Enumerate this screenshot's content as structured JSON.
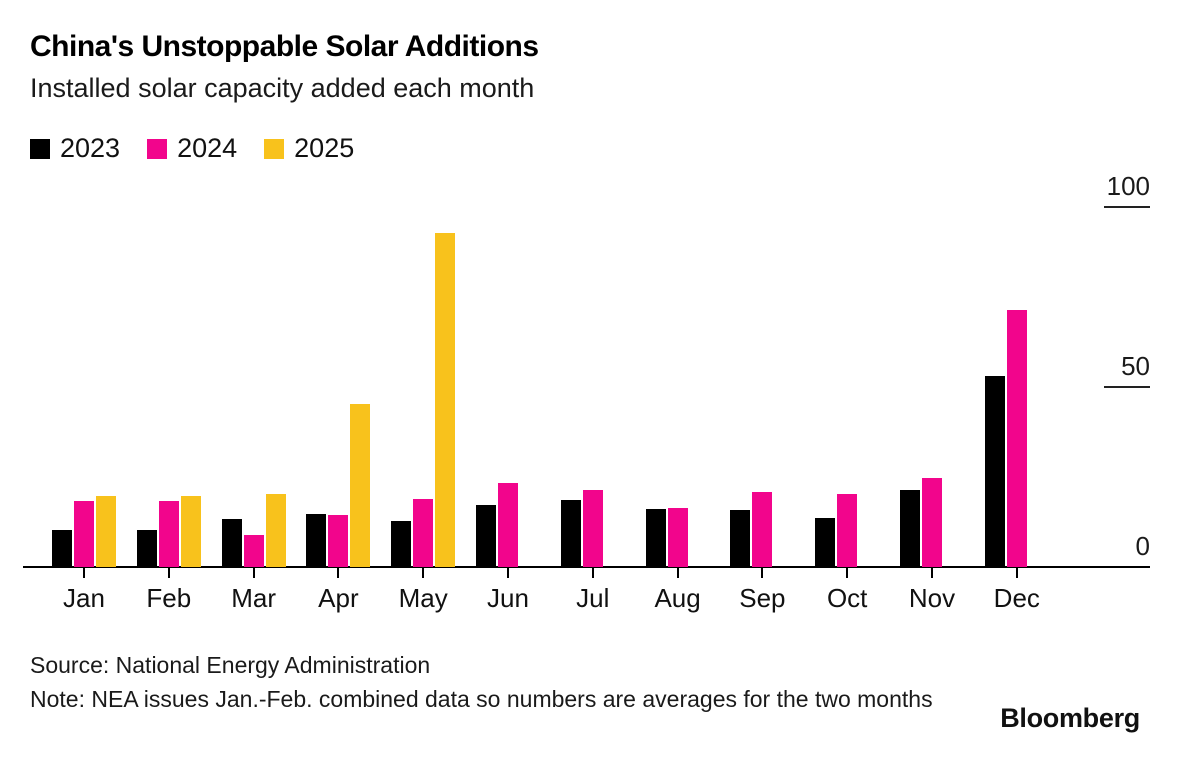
{
  "header": {
    "title": "China's Unstoppable Solar Additions",
    "subtitle": "Installed solar capacity added each month"
  },
  "legend": [
    {
      "label": "2023",
      "color": "#000000"
    },
    {
      "label": "2024",
      "color": "#F2058C"
    },
    {
      "label": "2025",
      "color": "#F8C21C"
    }
  ],
  "chart_data": {
    "type": "bar",
    "title": "China's Unstoppable Solar Additions",
    "subtitle": "Installed solar capacity added each month",
    "categories": [
      "Jan",
      "Feb",
      "Mar",
      "Apr",
      "May",
      "Jun",
      "Jul",
      "Aug",
      "Sep",
      "Oct",
      "Nov",
      "Dec"
    ],
    "series": [
      {
        "name": "2023",
        "color": "#000000",
        "values": [
          10.2,
          10.2,
          13.3,
          14.8,
          12.9,
          17.1,
          18.7,
          16.0,
          15.7,
          13.6,
          21.3,
          53.0
        ]
      },
      {
        "name": "2024",
        "color": "#F2058C",
        "values": [
          18.3,
          18.3,
          9.0,
          14.4,
          19.0,
          23.3,
          21.5,
          16.5,
          20.9,
          20.4,
          24.6,
          71.3
        ]
      },
      {
        "name": "2025",
        "color": "#F8C21C",
        "values": [
          19.8,
          19.8,
          20.2,
          45.2,
          92.9,
          null,
          null,
          null,
          null,
          null,
          null,
          null
        ]
      }
    ],
    "xlabel": "",
    "ylabel": "",
    "ylim": [
      0,
      100
    ],
    "yticks": [
      0,
      50,
      100
    ],
    "grid": false,
    "legend_position": "top-left",
    "y_axis_side": "right"
  },
  "footer": {
    "source": "Source: National Energy Administration",
    "note": "Note: NEA issues Jan.-Feb. combined data so numbers are averages for the two months",
    "brand": "Bloomberg"
  }
}
